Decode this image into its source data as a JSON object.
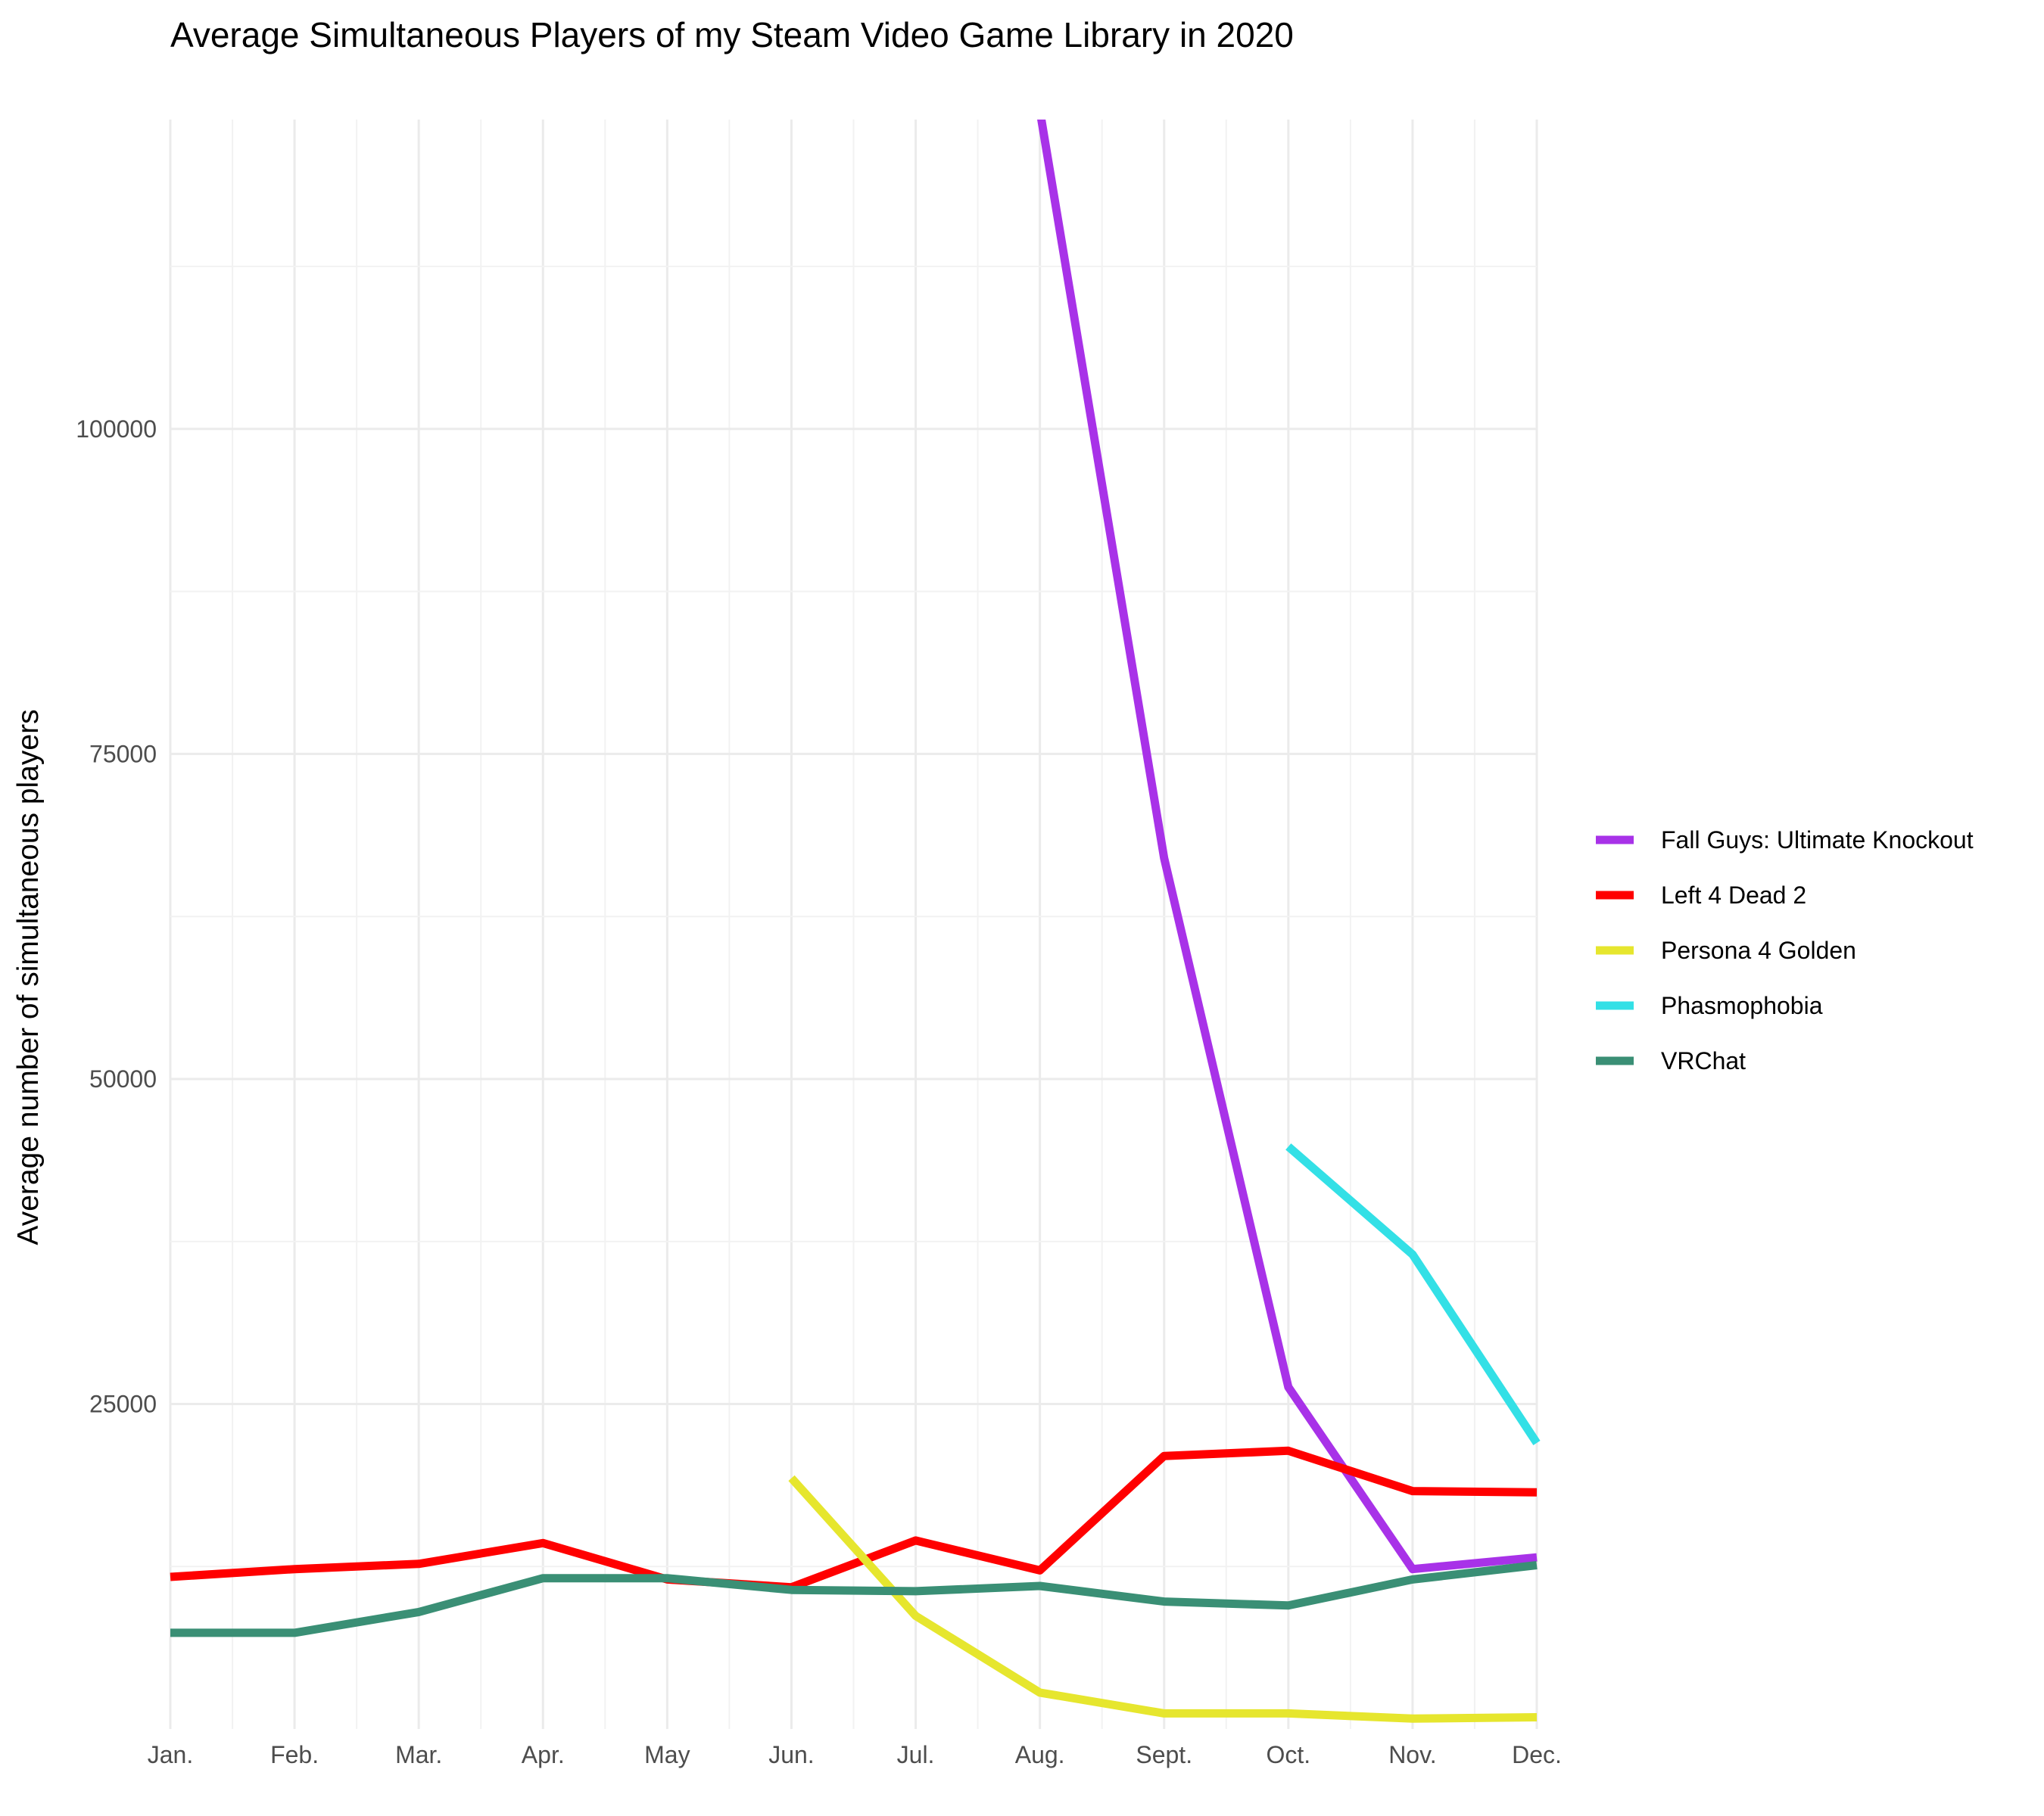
{
  "chart_data": {
    "type": "line",
    "title": "Average Simultaneous Players of my Steam Video Game Library in 2020",
    "xlabel": "",
    "ylabel": "Average number of simultaneous players",
    "categories": [
      "Jan.",
      "Feb.",
      "Mar.",
      "Apr.",
      "May",
      "Jun.",
      "Jul.",
      "Aug.",
      "Sept.",
      "Oct.",
      "Nov.",
      "Dec."
    ],
    "ylim": [
      0,
      123800
    ],
    "yticks": [
      25000,
      50000,
      75000,
      100000
    ],
    "grid": true,
    "legend_position": "right",
    "series": [
      {
        "name": "Fall Guys: Ultimate Knockout",
        "color": "#A832E8",
        "values": [
          null,
          null,
          null,
          null,
          null,
          null,
          null,
          124500,
          67000,
          26300,
          12300,
          13200
        ]
      },
      {
        "name": "Left 4 Dead 2",
        "color": "#FF0000",
        "values": [
          11700,
          12300,
          12700,
          14300,
          11500,
          10900,
          14500,
          12200,
          21000,
          21400,
          18300,
          18200
        ]
      },
      {
        "name": "Persona 4 Golden",
        "color": "#E6E62E",
        "values": [
          null,
          null,
          null,
          null,
          null,
          19300,
          8700,
          2800,
          1200,
          1200,
          800,
          900
        ]
      },
      {
        "name": "Phasmophobia",
        "color": "#33E0E6",
        "values": [
          null,
          null,
          null,
          null,
          null,
          null,
          null,
          null,
          null,
          44800,
          36500,
          22000
        ]
      },
      {
        "name": "VRChat",
        "color": "#3A8F75",
        "values": [
          7400,
          7400,
          9000,
          11600,
          11600,
          10700,
          10600,
          11000,
          9800,
          9500,
          11500,
          12600
        ]
      }
    ]
  }
}
